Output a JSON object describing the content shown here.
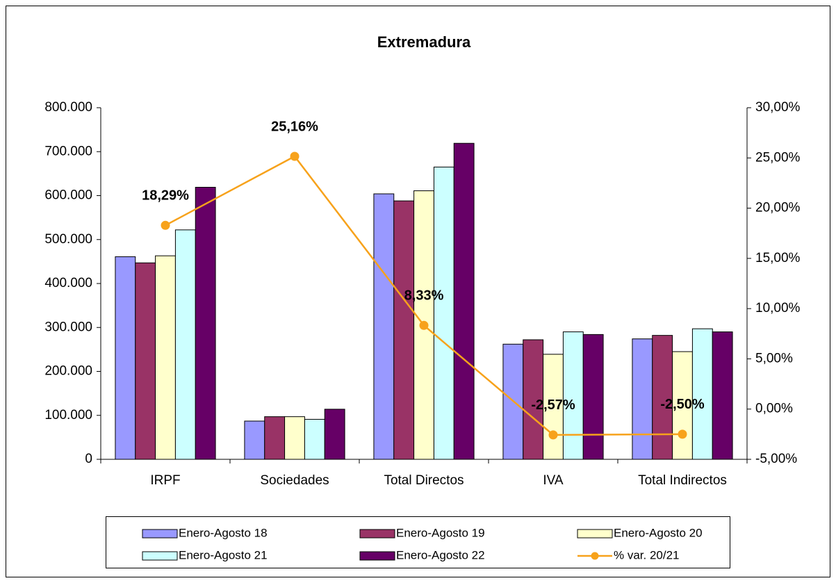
{
  "chart_data": {
    "type": "bar",
    "title": "Extremadura",
    "categories": [
      "IRPF",
      "Sociedades",
      "Total Directos",
      "IVA",
      "Total Indirectos"
    ],
    "series": [
      {
        "name": "Enero-Agosto 18",
        "color": "#9999ff",
        "values": [
          461000,
          87000,
          604000,
          262000,
          274000
        ]
      },
      {
        "name": "Enero-Agosto 19",
        "color": "#993366",
        "values": [
          447000,
          97000,
          588000,
          272000,
          282000
        ]
      },
      {
        "name": "Enero-Agosto 20",
        "color": "#ffffcc",
        "values": [
          463000,
          97000,
          611000,
          239000,
          245000
        ]
      },
      {
        "name": "Enero-Agosto 21",
        "color": "#ccffff",
        "values": [
          522000,
          91000,
          665000,
          290000,
          297000
        ]
      },
      {
        "name": "Enero-Agosto 22",
        "color": "#660066",
        "values": [
          619000,
          114000,
          719000,
          284000,
          290000
        ]
      },
      {
        "name": "% var. 20/21",
        "color": "#f7a21b",
        "type": "line",
        "axis": "y2",
        "values": [
          18.29,
          25.16,
          8.33,
          -2.57,
          -2.5
        ],
        "value_labels": [
          "18,29%",
          "25,16%",
          "8,33%",
          "-2,57%",
          "-2,50%"
        ]
      }
    ],
    "ylim": [
      0,
      800000
    ],
    "yticks": [
      0,
      {
        "value": 100000,
        "label": "100.000"
      },
      {
        "value": 200000,
        "label": "200.000"
      },
      {
        "value": 300000,
        "label": "300.000"
      },
      {
        "value": 400000,
        "label": "400.000"
      },
      {
        "value": 500000,
        "label": "500.000"
      },
      {
        "value": 600000,
        "label": "600.000"
      },
      {
        "value": 700000,
        "label": "700.000"
      },
      {
        "value": 800000,
        "label": "800.000"
      }
    ],
    "y2lim": [
      -5,
      30
    ],
    "y2ticks": [
      {
        "value": -5,
        "label": "-5,00%"
      },
      {
        "value": 0,
        "label": "0,00%"
      },
      {
        "value": 5,
        "label": "5,00%"
      },
      {
        "value": 10,
        "label": "10,00%"
      },
      {
        "value": 15,
        "label": "15,00%"
      },
      {
        "value": 20,
        "label": "20,00%"
      },
      {
        "value": 25,
        "label": "25,00%"
      },
      {
        "value": 30,
        "label": "30,00%"
      }
    ],
    "grid": false,
    "legend": "bottom"
  }
}
